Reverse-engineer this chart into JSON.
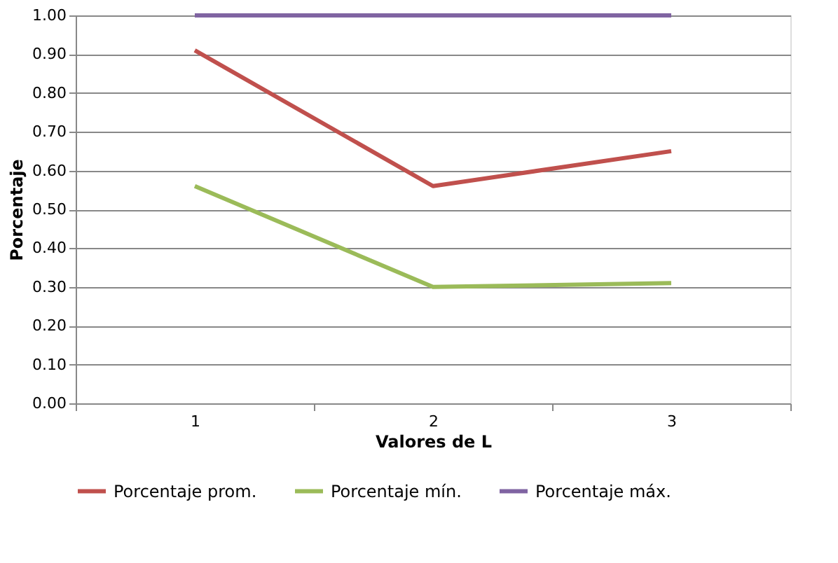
{
  "chart_data": {
    "type": "line",
    "xlabel": "Valores de L",
    "ylabel": "Porcentaje",
    "categories": [
      "1",
      "2",
      "3"
    ],
    "series": [
      {
        "name": "Porcentaje prom.",
        "color": "#c0504d",
        "values": [
          0.91,
          0.56,
          0.65
        ]
      },
      {
        "name": "Porcentaje mín.",
        "color": "#9bbb59",
        "values": [
          0.56,
          0.3,
          0.31
        ]
      },
      {
        "name": "Porcentaje máx.",
        "color": "#8064a2",
        "values": [
          1.0,
          1.0,
          1.0
        ]
      }
    ],
    "ylim": [
      0,
      1
    ],
    "yticks": [
      {
        "value": 0,
        "label": "0.00"
      },
      {
        "value": 0.1,
        "label": "0.10"
      },
      {
        "value": 0.2,
        "label": "0.20"
      },
      {
        "value": 0.3,
        "label": "0.30"
      },
      {
        "value": 0.4,
        "label": "0.40"
      },
      {
        "value": 0.5,
        "label": "0.50"
      },
      {
        "value": 0.6,
        "label": "0.60"
      },
      {
        "value": 0.7,
        "label": "0.70"
      },
      {
        "value": 0.8,
        "label": "0.80"
      },
      {
        "value": 0.9,
        "label": "0.90"
      },
      {
        "value": 1,
        "label": "1.00"
      }
    ],
    "grid": "y",
    "legend": "bottom",
    "marker": "none",
    "line_style": "solid"
  }
}
